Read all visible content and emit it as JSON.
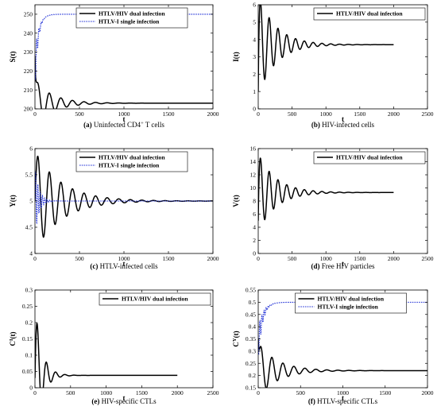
{
  "colors": {
    "dual": "#000000",
    "single": "#1f2fd6"
  },
  "chart_data": [
    {
      "type": "line",
      "caption_letter": "(a)",
      "caption_text": "Uninfected CD4",
      "caption_sup": "+",
      "caption_tail": "T cells",
      "ylabel": "S(t)",
      "xlabel": "t",
      "xlim": [
        0,
        2000
      ],
      "ylim": [
        200,
        255
      ],
      "xticks": [
        0,
        500,
        1000,
        1500,
        2000
      ],
      "yticks": [
        200,
        210,
        220,
        230,
        240,
        250
      ],
      "legend": "top-center",
      "series": [
        {
          "name": "HTLV/HIV dual infection",
          "style": "dual",
          "start": 228,
          "steady": 203,
          "amp": 12,
          "period": 130,
          "tau": 200,
          "max_t": 2000
        },
        {
          "name": "HTLV-I single infection",
          "style": "single",
          "start": 220,
          "steady": 250,
          "rise": 40,
          "ripple": 5,
          "period": 25,
          "max_t": 2000
        }
      ]
    },
    {
      "type": "line",
      "caption_letter": "(b)",
      "caption_text": "HIV-infected cells",
      "ylabel": "I(t)",
      "xlabel": "t",
      "xlim": [
        0,
        2500
      ],
      "ylim": [
        0,
        6
      ],
      "xticks": [
        0,
        500,
        1000,
        1500,
        2000,
        2500
      ],
      "yticks": [
        0,
        1,
        2,
        3,
        4,
        5,
        6
      ],
      "legend": "top-right",
      "series": [
        {
          "name": "HTLV/HIV dual infection",
          "style": "dual",
          "start": 1.0,
          "steady": 3.7,
          "amp": 2.9,
          "period": 130,
          "tau": 260,
          "max_t": 2000
        }
      ]
    },
    {
      "type": "line",
      "caption_letter": "(c)",
      "caption_text": "HTLV-infected cells",
      "ylabel": "Y(t)",
      "xlabel": "t",
      "xlim": [
        0,
        2000
      ],
      "ylim": [
        4,
        6
      ],
      "xticks": [
        0,
        500,
        1000,
        1500,
        2000
      ],
      "yticks": [
        4,
        4.5,
        5,
        5.5,
        6
      ],
      "legend": "top-center",
      "series": [
        {
          "name": "HTLV/HIV dual infection",
          "style": "dual",
          "start": 5.0,
          "steady": 5.0,
          "amp": 0.95,
          "period": 130,
          "tau": 300,
          "max_t": 2000
        },
        {
          "name": "HTLV-I single infection",
          "style": "single",
          "start": 5.0,
          "steady": 5.0,
          "amp": 0.65,
          "period": 26,
          "tau": 45,
          "max_t": 2000
        }
      ]
    },
    {
      "type": "line",
      "caption_letter": "(d)",
      "caption_text": "Free HIV particles",
      "ylabel": "V(t)",
      "xlabel": "t",
      "xlim": [
        0,
        2500
      ],
      "ylim": [
        0,
        16
      ],
      "xticks": [
        0,
        500,
        1000,
        1500,
        2000,
        2500
      ],
      "yticks": [
        0,
        2,
        4,
        6,
        8,
        10,
        12,
        14,
        16
      ],
      "legend": "top-right",
      "series": [
        {
          "name": "HTLV/HIV dual infection",
          "style": "dual",
          "start": 5.0,
          "steady": 9.3,
          "amp": 6.0,
          "period": 130,
          "tau": 260,
          "max_t": 2000
        }
      ]
    },
    {
      "type": "line",
      "caption_letter": "(e)",
      "caption_text": "HIV-specific CTLs",
      "ylabel": "C",
      "ylabel_sup": "I",
      "ylabel_tail": "(t)",
      "xlabel": "t",
      "xlim": [
        0,
        2500
      ],
      "ylim": [
        0,
        0.3
      ],
      "xticks": [
        0,
        500,
        1000,
        1500,
        2000,
        2500
      ],
      "yticks": [
        0,
        0.05,
        0.1,
        0.15,
        0.2,
        0.25,
        0.3
      ],
      "legend": "top-right",
      "series": [
        {
          "name": "HTLV/HIV dual infection",
          "style": "dual",
          "start": 0.03,
          "steady": 0.038,
          "amp": 0.22,
          "period": 130,
          "tau": 95,
          "max_t": 2000
        }
      ]
    },
    {
      "type": "line",
      "caption_letter": "(f)",
      "caption_text": "HTLV-specific CTLs",
      "ylabel": "C",
      "ylabel_sup": "Y",
      "ylabel_tail": "(t)",
      "xlabel": "t",
      "xlim": [
        0,
        2000
      ],
      "ylim": [
        0.15,
        0.55
      ],
      "xticks": [
        0,
        500,
        1000,
        1500,
        2000
      ],
      "yticks": [
        0.15,
        0.2,
        0.25,
        0.3,
        0.35,
        0.4,
        0.45,
        0.5,
        0.55
      ],
      "legend": "top-center",
      "series": [
        {
          "name": "HTLV/HIV dual infection",
          "style": "dual",
          "start": 0.35,
          "steady": 0.22,
          "amp": 0.11,
          "period": 130,
          "tau": 230,
          "max_t": 2000
        },
        {
          "name": "HTLV-I single infection",
          "style": "single",
          "start": 0.33,
          "steady": 0.5,
          "rise": 55,
          "ripple": 0.02,
          "period": 25,
          "max_t": 2000
        }
      ]
    }
  ]
}
